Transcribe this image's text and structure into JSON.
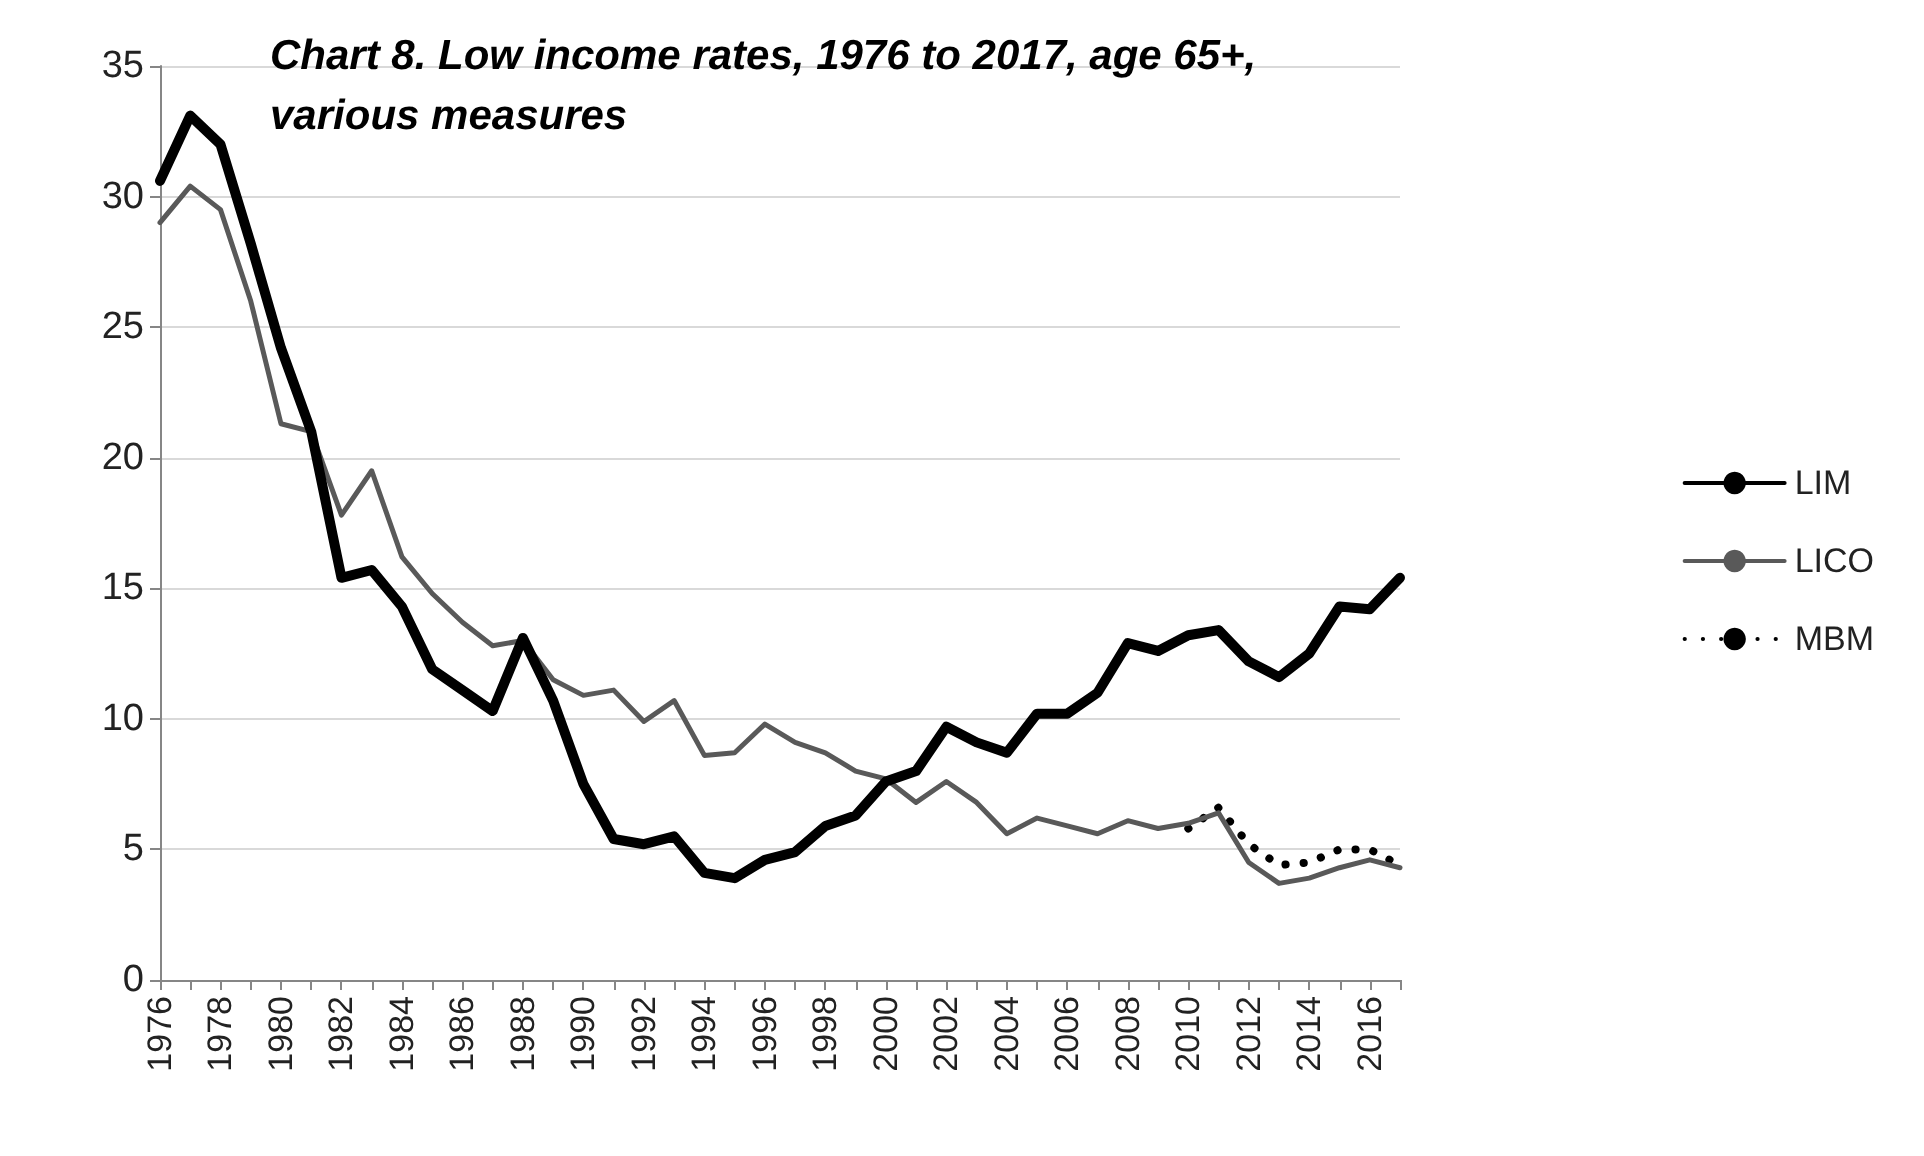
{
  "chart_data": {
    "type": "line",
    "title": "Chart 8. Low income rates, 1976 to 2017, age 65+, various measures",
    "categories": [
      "1976",
      null,
      "1978",
      null,
      "1980",
      null,
      "1982",
      null,
      "1984",
      null,
      "1986",
      null,
      "1988",
      null,
      "1990",
      null,
      "1992",
      null,
      "1994",
      null,
      "1996",
      null,
      "1998",
      null,
      "2000",
      null,
      "2002",
      null,
      "2004",
      null,
      "2006",
      null,
      "2008",
      null,
      "2010",
      null,
      "2012",
      null,
      "2014",
      null,
      "2016",
      null
    ],
    "series": [
      {
        "name": "LIM",
        "color": "#000000",
        "line_style": "solid",
        "values": [
          30.6,
          33.1,
          32.0,
          28.2,
          24.2,
          21.0,
          15.4,
          15.7,
          14.3,
          11.9,
          11.1,
          10.3,
          13.1,
          10.7,
          7.5,
          5.4,
          5.2,
          5.5,
          4.1,
          3.9,
          4.6,
          4.9,
          5.9,
          6.3,
          7.6,
          8.0,
          9.7,
          9.1,
          8.7,
          10.2,
          10.2,
          11.0,
          12.9,
          12.6,
          13.2,
          13.4,
          12.2,
          11.6,
          12.5,
          14.3,
          14.2,
          15.4
        ]
      },
      {
        "name": "LICO",
        "color": "#595959",
        "line_style": "solid",
        "values": [
          29.0,
          30.4,
          29.5,
          26.0,
          21.3,
          21.0,
          17.8,
          19.5,
          16.2,
          14.8,
          13.7,
          12.8,
          13.0,
          11.5,
          10.9,
          11.1,
          9.9,
          10.7,
          8.6,
          8.7,
          9.8,
          9.1,
          8.7,
          8.0,
          7.7,
          6.8,
          7.6,
          6.8,
          5.6,
          6.2,
          5.9,
          5.6,
          6.1,
          5.8,
          6.0,
          6.4,
          4.5,
          3.7,
          3.9,
          4.3,
          4.6,
          4.3
        ]
      },
      {
        "name": "MBM",
        "color": "#000000",
        "line_style": "dotted",
        "values": [
          null,
          null,
          null,
          null,
          null,
          null,
          null,
          null,
          null,
          null,
          null,
          null,
          null,
          null,
          null,
          null,
          null,
          null,
          null,
          null,
          null,
          null,
          null,
          null,
          null,
          null,
          null,
          null,
          null,
          null,
          null,
          null,
          null,
          null,
          5.8,
          6.6,
          5.2,
          4.4,
          4.5,
          5.0,
          5.0,
          4.4
        ]
      }
    ],
    "ylim": [
      0,
      35
    ],
    "yticks": [
      0,
      5,
      10,
      15,
      20,
      25,
      30,
      35
    ],
    "grid": "y",
    "legend": "right",
    "marker": "none"
  }
}
